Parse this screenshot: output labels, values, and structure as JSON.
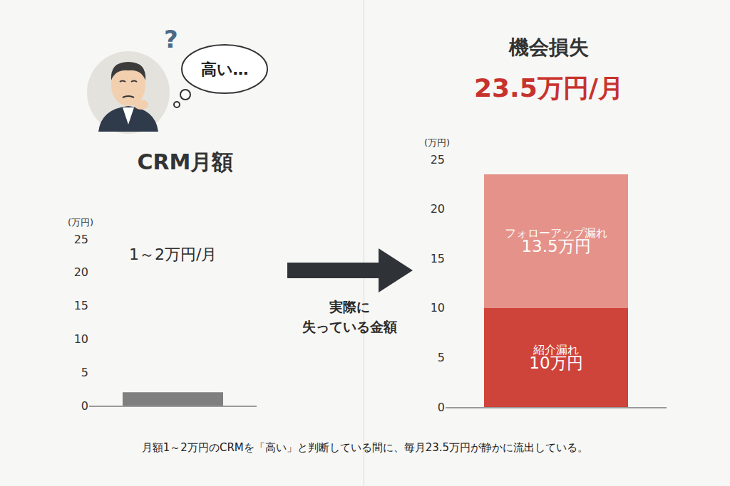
{
  "icon": {
    "question": "?",
    "thought": "高い…"
  },
  "arrow_label": "実際に\n失っている金額",
  "caption": "月額1～2万円のCRMを「高い」と判断している間に、毎月23.5万円が静かに流出している。",
  "chart_data": [
    {
      "type": "bar",
      "title": "CRM月額",
      "ylabel": "(万円)",
      "categories": [
        null
      ],
      "values": [
        2
      ],
      "value_labels": [
        "1～2万円/月"
      ],
      "color": "#7f7f7f",
      "ylim": [
        0,
        25
      ],
      "yticks": [
        0,
        5,
        10,
        15,
        20,
        25
      ],
      "grid": false,
      "tick_labels": "y",
      "data_labels": true
    },
    {
      "type": "bar",
      "title": "機会損失",
      "subtitle": "23.5万円/月",
      "ylabel": "(万円)",
      "stacked": true,
      "categories": [
        null
      ],
      "series": [
        {
          "name": "紹介漏れ",
          "color": "#cf443a",
          "values": [
            10
          ],
          "value_labels": [
            "10万円"
          ]
        },
        {
          "name": "フォローアップ漏れ",
          "color": "#e5938a",
          "values": [
            13.5
          ],
          "value_labels": [
            "13.5万円"
          ]
        }
      ],
      "ylim": [
        0,
        25
      ],
      "yticks": [
        0,
        5,
        10,
        15,
        20,
        25
      ],
      "grid": false,
      "tick_labels": "y",
      "data_labels": true
    }
  ]
}
